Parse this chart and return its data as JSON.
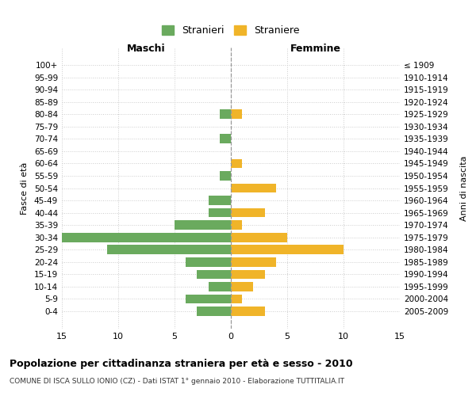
{
  "age_groups": [
    "100+",
    "95-99",
    "90-94",
    "85-89",
    "80-84",
    "75-79",
    "70-74",
    "65-69",
    "60-64",
    "55-59",
    "50-54",
    "45-49",
    "40-44",
    "35-39",
    "30-34",
    "25-29",
    "20-24",
    "15-19",
    "10-14",
    "5-9",
    "0-4"
  ],
  "birth_years": [
    "≤ 1909",
    "1910-1914",
    "1915-1919",
    "1920-1924",
    "1925-1929",
    "1930-1934",
    "1935-1939",
    "1940-1944",
    "1945-1949",
    "1950-1954",
    "1955-1959",
    "1960-1964",
    "1965-1969",
    "1970-1974",
    "1975-1979",
    "1980-1984",
    "1985-1989",
    "1990-1994",
    "1995-1999",
    "2000-2004",
    "2005-2009"
  ],
  "maschi": [
    0,
    0,
    0,
    0,
    1,
    0,
    1,
    0,
    0,
    1,
    0,
    2,
    2,
    5,
    15,
    11,
    4,
    3,
    2,
    4,
    3
  ],
  "femmine": [
    0,
    0,
    0,
    0,
    1,
    0,
    0,
    0,
    1,
    0,
    4,
    0,
    3,
    1,
    5,
    10,
    4,
    3,
    2,
    1,
    3
  ],
  "color_maschi": "#6aaa5e",
  "color_femmine": "#f0b429",
  "title": "Popolazione per cittadinanza straniera per età e sesso - 2010",
  "subtitle": "COMUNE DI ISCA SULLO IONIO (CZ) - Dati ISTAT 1° gennaio 2010 - Elaborazione TUTTITALIA.IT",
  "xlabel_left": "Maschi",
  "xlabel_right": "Femmine",
  "ylabel_left": "Fasce di età",
  "ylabel_right": "Anni di nascita",
  "legend_maschi": "Stranieri",
  "legend_femmine": "Straniere",
  "xlim": 15,
  "background_color": "#ffffff",
  "grid_color": "#cccccc"
}
